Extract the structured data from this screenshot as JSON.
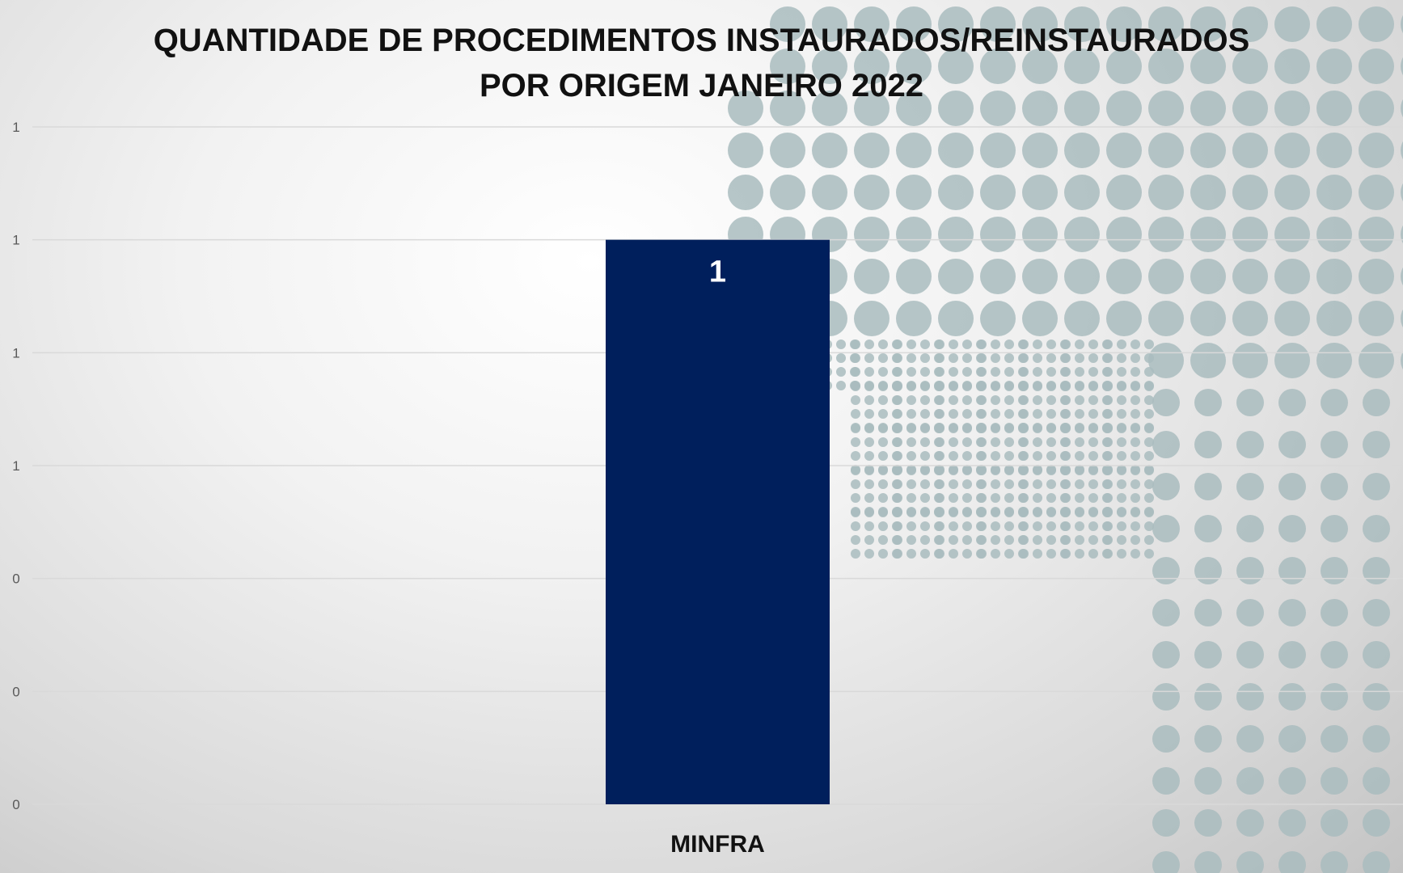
{
  "chart_data": {
    "type": "bar",
    "title_lines": [
      "QUANTIDADE DE PROCEDIMENTOS INSTAURADOS/REINSTAURADOS",
      "POR ORIGEM JANEIRO 2022"
    ],
    "categories": [
      "MINFRA"
    ],
    "values": [
      1
    ],
    "data_labels": [
      "1"
    ],
    "y_tick_labels": [
      "0",
      "0",
      "0",
      "1",
      "1",
      "1",
      "1"
    ],
    "ylim": [
      0,
      1.2
    ],
    "grid": true,
    "legend": "none",
    "xlabel": "",
    "ylabel": ""
  },
  "colors": {
    "bar": "#001f5c",
    "data_label": "#ffffff",
    "axis_text": "#595959",
    "category_text": "#111111",
    "gridline": "#d9d9d9",
    "map_dots": "#a9bcbe"
  }
}
